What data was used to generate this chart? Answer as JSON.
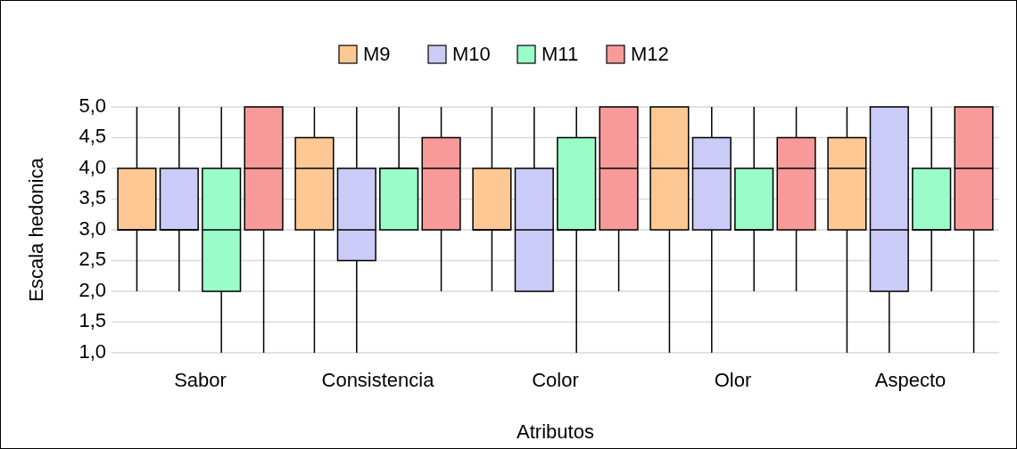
{
  "chart_data": {
    "type": "box",
    "xlabel": "Atributos",
    "ylabel": "Escala hedonica",
    "categories": [
      "Sabor",
      "Consistencia",
      "Color",
      "Olor",
      "Aspecto"
    ],
    "ylim": [
      1,
      5
    ],
    "yticks": [
      {
        "value": 1,
        "label": "1,0"
      },
      {
        "value": 1.5,
        "label": "1,5"
      },
      {
        "value": 2,
        "label": "2,0"
      },
      {
        "value": 2.5,
        "label": "2,5"
      },
      {
        "value": 3,
        "label": "3,0"
      },
      {
        "value": 3.5,
        "label": "3,5"
      },
      {
        "value": 4,
        "label": "4,0"
      },
      {
        "value": 4.5,
        "label": "4,5"
      },
      {
        "value": 5,
        "label": "5,0"
      }
    ],
    "grid": "y",
    "legend": "top",
    "series": [
      {
        "name": "M9",
        "color": "#fdc893",
        "boxes": [
          {
            "low": 2,
            "q1": 3,
            "median": 3,
            "q3": 4,
            "high": 5
          },
          {
            "low": 1,
            "q1": 3,
            "median": 4,
            "q3": 4.5,
            "high": 5
          },
          {
            "low": 2,
            "q1": 3,
            "median": 3,
            "q3": 4,
            "high": 5
          },
          {
            "low": 1,
            "q1": 3,
            "median": 4,
            "q3": 5,
            "high": 5
          },
          {
            "low": 1,
            "q1": 3,
            "median": 4,
            "q3": 4.5,
            "high": 5
          }
        ]
      },
      {
        "name": "M10",
        "color": "#cbcbf8",
        "boxes": [
          {
            "low": 2,
            "q1": 3,
            "median": 3,
            "q3": 4,
            "high": 5
          },
          {
            "low": 1,
            "q1": 2.5,
            "median": 3,
            "q3": 4,
            "high": 5
          },
          {
            "low": 2,
            "q1": 2,
            "median": 3,
            "q3": 4,
            "high": 5
          },
          {
            "low": 1,
            "q1": 3,
            "median": 4,
            "q3": 4.5,
            "high": 5
          },
          {
            "low": 1,
            "q1": 2,
            "median": 3,
            "q3": 5,
            "high": 5
          }
        ]
      },
      {
        "name": "M11",
        "color": "#9afcc9",
        "boxes": [
          {
            "low": 1,
            "q1": 2,
            "median": 3,
            "q3": 4,
            "high": 5
          },
          {
            "low": 3,
            "q1": 3,
            "median": 4,
            "q3": 4,
            "high": 5
          },
          {
            "low": 1,
            "q1": 3,
            "median": 3,
            "q3": 4.5,
            "high": 5
          },
          {
            "low": 2,
            "q1": 3,
            "median": 3,
            "q3": 4,
            "high": 5
          },
          {
            "low": 2,
            "q1": 3,
            "median": 3,
            "q3": 4,
            "high": 5
          }
        ]
      },
      {
        "name": "M12",
        "color": "#f99a9a",
        "boxes": [
          {
            "low": 1,
            "q1": 3,
            "median": 4,
            "q3": 5,
            "high": 5
          },
          {
            "low": 2,
            "q1": 3,
            "median": 4,
            "q3": 4.5,
            "high": 5
          },
          {
            "low": 2,
            "q1": 3,
            "median": 4,
            "q3": 5,
            "high": 5
          },
          {
            "low": 2,
            "q1": 3,
            "median": 4,
            "q3": 4.5,
            "high": 5
          },
          {
            "low": 1,
            "q1": 3,
            "median": 4,
            "q3": 5,
            "high": 5
          }
        ]
      }
    ]
  }
}
